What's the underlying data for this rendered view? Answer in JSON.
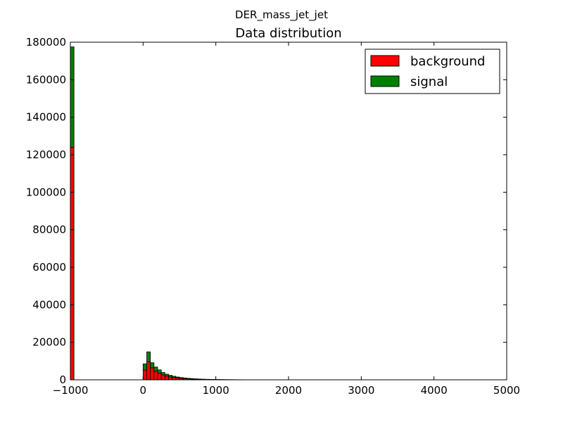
{
  "figure": {
    "suptitle": "DER_mass_jet_jet"
  },
  "chart_data": {
    "type": "bar",
    "title": "Data distribution",
    "xlabel": "",
    "ylabel": "",
    "stacked": true,
    "xlim": [
      -1000,
      5000
    ],
    "ylim": [
      0,
      180000
    ],
    "xticks": [
      "-1000",
      "0",
      "1000",
      "2000",
      "3000",
      "4000",
      "5000"
    ],
    "yticks": [
      "0",
      "20000",
      "40000",
      "60000",
      "80000",
      "100000",
      "120000",
      "140000",
      "160000",
      "180000"
    ],
    "grid": false,
    "legend_position": "top-right",
    "bin_width": 50,
    "bin_starts": [
      -1000,
      0,
      50,
      100,
      150,
      200,
      250,
      300,
      350,
      400,
      450,
      500,
      550,
      600,
      650,
      700,
      750,
      800,
      850,
      900,
      950,
      1000,
      1050,
      1100,
      1150,
      1200,
      1250,
      1300,
      1350,
      1400,
      1450,
      1500,
      1550
    ],
    "series": [
      {
        "name": "background",
        "color": "#ff0000",
        "values": [
          124000,
          5200,
          9600,
          6400,
          4600,
          3600,
          2600,
          2000,
          1600,
          1250,
          1000,
          800,
          650,
          520,
          420,
          340,
          280,
          230,
          190,
          160,
          130,
          110,
          90,
          75,
          62,
          52,
          43,
          36,
          30,
          25,
          21,
          17,
          14
        ]
      },
      {
        "name": "signal",
        "color": "#008000",
        "values": [
          53500,
          3300,
          5300,
          2700,
          2200,
          1700,
          1300,
          1000,
          800,
          650,
          500,
          400,
          320,
          260,
          210,
          170,
          140,
          110,
          90,
          75,
          60,
          50,
          42,
          35,
          30,
          25,
          21,
          17,
          14,
          12,
          10,
          8,
          6
        ]
      }
    ]
  }
}
